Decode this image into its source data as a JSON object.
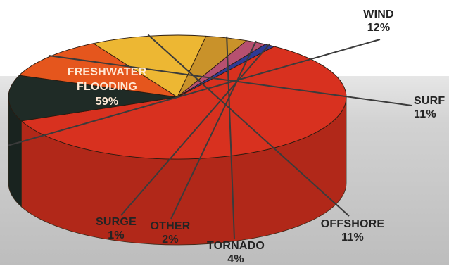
{
  "colors": {
    "background_band": "#c9c9c9",
    "freshwater_flooding": "#d8311f",
    "wind": "#1f2b26",
    "surf": "#e5561d",
    "offshore": "#edb733",
    "tornado": "#c9922a",
    "other": "#b65070",
    "surge": "#2e3a95"
  },
  "chart_data": {
    "type": "pie",
    "title": "",
    "slices": [
      {
        "label": "FRESHWATER FLOODING",
        "line1": "FRESHWATER",
        "line2": "FLOODING",
        "value": 59,
        "display": "59%",
        "color": "#d8311f"
      },
      {
        "label": "WIND",
        "value": 12,
        "display": "12%",
        "color": "#1f2b26"
      },
      {
        "label": "SURF",
        "value": 11,
        "display": "11%",
        "color": "#e5561d"
      },
      {
        "label": "OFFSHORE",
        "value": 11,
        "display": "11%",
        "color": "#edb733"
      },
      {
        "label": "TORNADO",
        "value": 4,
        "display": "4%",
        "color": "#c9922a"
      },
      {
        "label": "OTHER",
        "value": 2,
        "display": "2%",
        "color": "#b65070"
      },
      {
        "label": "SURGE",
        "value": 1,
        "display": "1%",
        "color": "#2e3a95"
      }
    ]
  }
}
